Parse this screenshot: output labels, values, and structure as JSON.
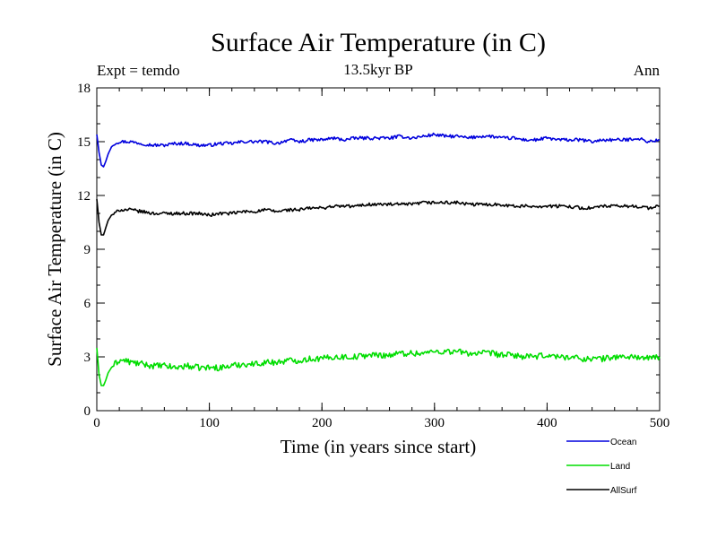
{
  "chart_data": {
    "type": "line",
    "title": "Surface Air Temperature (in C)",
    "subtitle": "13.5kyr BP",
    "annotation_left": "Expt = temdo",
    "annotation_right": "Ann",
    "xlabel": "Time (in years since start)",
    "ylabel": "Surface Air Temperature (in C)",
    "xlim": [
      0,
      500
    ],
    "ylim": [
      0,
      18
    ],
    "xticks": [
      0,
      100,
      200,
      300,
      400,
      500
    ],
    "yticks": [
      0,
      3,
      6,
      9,
      12,
      15,
      18
    ],
    "x_minor_step": 20,
    "y_minor_step": 1,
    "legend_position": "bottom-right",
    "series": [
      {
        "name": "Ocean",
        "color": "#0000dd",
        "x": [
          0,
          2,
          4,
          6,
          8,
          10,
          13,
          16,
          20,
          25,
          30,
          40,
          50,
          60,
          70,
          80,
          90,
          100,
          110,
          120,
          130,
          140,
          150,
          160,
          170,
          180,
          190,
          200,
          210,
          220,
          230,
          240,
          250,
          260,
          270,
          280,
          290,
          300,
          310,
          320,
          330,
          340,
          350,
          360,
          370,
          380,
          390,
          400,
          410,
          420,
          430,
          440,
          450,
          460,
          470,
          480,
          490,
          500
        ],
        "values": [
          15.4,
          14.4,
          13.7,
          13.6,
          13.9,
          14.3,
          14.7,
          14.9,
          15.0,
          15.0,
          15.0,
          14.9,
          14.8,
          14.8,
          14.9,
          14.9,
          14.8,
          14.8,
          14.9,
          14.9,
          15.0,
          15.0,
          15.0,
          14.9,
          15.1,
          15.0,
          15.1,
          15.1,
          15.2,
          15.1,
          15.2,
          15.2,
          15.2,
          15.2,
          15.3,
          15.2,
          15.3,
          15.4,
          15.3,
          15.3,
          15.2,
          15.3,
          15.3,
          15.2,
          15.2,
          15.1,
          15.1,
          15.2,
          15.1,
          15.1,
          15.1,
          15.0,
          15.1,
          15.1,
          15.1,
          15.2,
          15.0,
          15.1
        ]
      },
      {
        "name": "Land",
        "color": "#00dd00",
        "x": [
          0,
          2,
          4,
          6,
          8,
          10,
          13,
          16,
          20,
          25,
          30,
          40,
          50,
          60,
          70,
          80,
          90,
          100,
          110,
          120,
          130,
          140,
          150,
          160,
          170,
          180,
          190,
          200,
          210,
          220,
          230,
          240,
          250,
          260,
          270,
          280,
          290,
          300,
          310,
          320,
          330,
          340,
          350,
          360,
          370,
          380,
          390,
          400,
          410,
          420,
          430,
          440,
          450,
          460,
          470,
          480,
          490,
          500
        ],
        "values": [
          3.5,
          2.0,
          1.4,
          1.4,
          1.7,
          2.1,
          2.4,
          2.6,
          2.8,
          2.8,
          2.7,
          2.6,
          2.5,
          2.5,
          2.4,
          2.5,
          2.4,
          2.4,
          2.4,
          2.5,
          2.6,
          2.6,
          2.7,
          2.7,
          2.8,
          2.8,
          2.9,
          2.9,
          3.0,
          3.0,
          3.0,
          3.1,
          3.1,
          3.1,
          3.2,
          3.2,
          3.2,
          3.3,
          3.3,
          3.3,
          3.2,
          3.2,
          3.2,
          3.1,
          3.1,
          3.0,
          3.0,
          3.1,
          3.0,
          3.0,
          2.9,
          2.9,
          2.9,
          3.0,
          3.0,
          3.0,
          2.9,
          3.0
        ]
      },
      {
        "name": "AllSurf",
        "color": "#000000",
        "x": [
          0,
          2,
          4,
          6,
          8,
          10,
          13,
          16,
          20,
          25,
          30,
          40,
          50,
          60,
          70,
          80,
          90,
          100,
          110,
          120,
          130,
          140,
          150,
          160,
          170,
          180,
          190,
          200,
          210,
          220,
          230,
          240,
          250,
          260,
          270,
          280,
          290,
          300,
          310,
          320,
          330,
          340,
          350,
          360,
          370,
          380,
          390,
          400,
          410,
          420,
          430,
          440,
          450,
          460,
          470,
          480,
          490,
          500
        ],
        "values": [
          11.8,
          10.5,
          9.8,
          9.8,
          10.2,
          10.6,
          10.9,
          11.0,
          11.2,
          11.2,
          11.2,
          11.1,
          11.0,
          11.0,
          11.0,
          11.0,
          11.0,
          10.9,
          11.0,
          11.0,
          11.1,
          11.1,
          11.2,
          11.1,
          11.2,
          11.2,
          11.3,
          11.3,
          11.4,
          11.4,
          11.4,
          11.5,
          11.5,
          11.5,
          11.5,
          11.5,
          11.6,
          11.6,
          11.6,
          11.6,
          11.5,
          11.5,
          11.5,
          11.5,
          11.4,
          11.4,
          11.4,
          11.4,
          11.4,
          11.4,
          11.3,
          11.3,
          11.4,
          11.4,
          11.4,
          11.4,
          11.3,
          11.4
        ]
      }
    ]
  }
}
